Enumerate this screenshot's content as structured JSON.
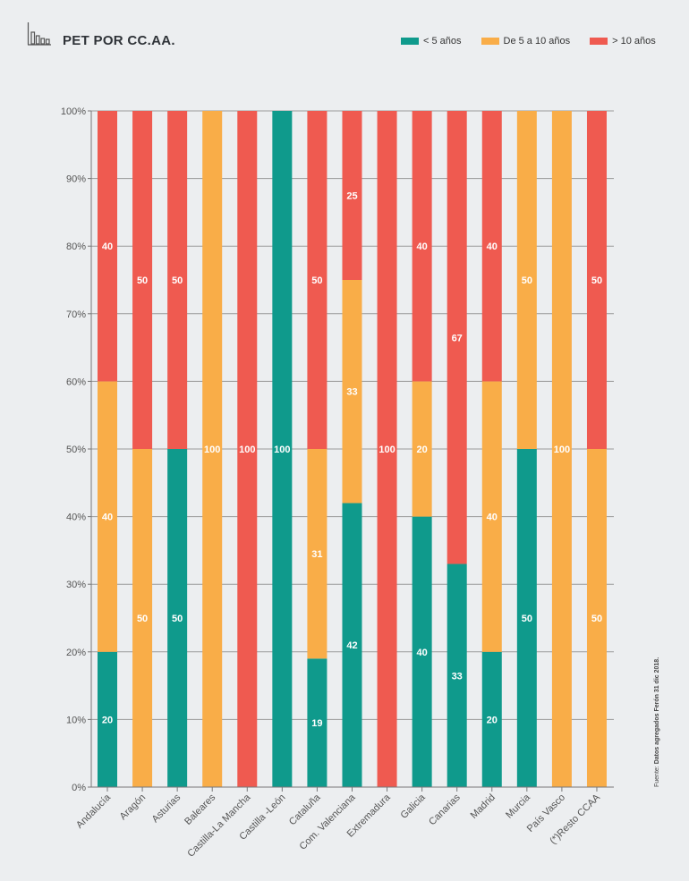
{
  "title": "PET POR CC.AA.",
  "legend": [
    {
      "label": "< 5 años",
      "color": "#0f9a8c"
    },
    {
      "label": "De 5 a 10 años",
      "color": "#f9ad48"
    },
    {
      "label": "> 10 años",
      "color": "#ef5a50"
    }
  ],
  "source": {
    "prefix": "Fuente:",
    "text": "Datos agregados Ferón 31 dic 2018."
  },
  "chart_data": {
    "type": "bar",
    "stacked": true,
    "categories": [
      "Andalucía",
      "Aragón",
      "Asturias",
      "Baleares",
      "Castilla-La Mancha",
      "Castilla -León",
      "Cataluña",
      "Com. Valenciana",
      "Extremadura",
      "Galicia",
      "Canarias",
      "Madrid",
      "Murcia",
      "País Vasco",
      "(*)Resto CCAA"
    ],
    "series": [
      {
        "name": "< 5 años",
        "color": "#0f9a8c",
        "values": [
          20,
          0,
          50,
          0,
          0,
          100,
          19,
          42,
          0,
          40,
          33,
          20,
          50,
          0,
          0
        ]
      },
      {
        "name": "De 5 a 10 años",
        "color": "#f9ad48",
        "values": [
          40,
          50,
          0,
          100,
          0,
          0,
          31,
          33,
          0,
          20,
          0,
          40,
          50,
          100,
          50
        ]
      },
      {
        "name": "> 10 años",
        "color": "#ef5a50",
        "values": [
          40,
          50,
          50,
          0,
          100,
          0,
          50,
          25,
          100,
          40,
          67,
          40,
          0,
          0,
          50
        ]
      }
    ],
    "yticks": [
      "0%",
      "10%",
      "20%",
      "30%",
      "40%",
      "50%",
      "60%",
      "70%",
      "80%",
      "90%",
      "100%"
    ],
    "ylim": [
      0,
      100
    ],
    "grid": true,
    "legend_position": "top-right"
  }
}
